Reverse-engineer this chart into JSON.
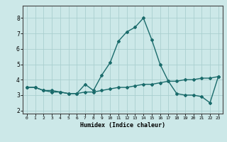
{
  "title": "",
  "xlabel": "Humidex (Indice chaleur)",
  "ylabel": "",
  "background_color": "#cce8e8",
  "grid_color": "#aacfcf",
  "line_color": "#1a6b6b",
  "xlim": [
    -0.5,
    23.5
  ],
  "ylim": [
    1.8,
    8.8
  ],
  "yticks": [
    2,
    3,
    4,
    5,
    6,
    7,
    8
  ],
  "xticks": [
    0,
    1,
    2,
    3,
    4,
    5,
    6,
    7,
    8,
    9,
    10,
    11,
    12,
    13,
    14,
    15,
    16,
    17,
    18,
    19,
    20,
    21,
    22,
    23
  ],
  "series1_x": [
    0,
    1,
    2,
    3,
    4,
    5,
    6,
    7,
    8,
    9,
    10,
    11,
    12,
    13,
    14,
    15,
    16,
    17,
    18,
    19,
    20,
    21,
    22,
    23
  ],
  "series1_y": [
    3.5,
    3.5,
    3.3,
    3.3,
    3.2,
    3.1,
    3.1,
    3.7,
    3.3,
    4.3,
    5.1,
    6.5,
    7.1,
    7.4,
    8.0,
    6.6,
    5.0,
    3.9,
    3.1,
    3.0,
    3.0,
    2.9,
    2.5,
    4.2
  ],
  "series2_x": [
    0,
    1,
    2,
    3,
    4,
    5,
    6,
    7,
    8,
    9,
    10,
    11,
    12,
    13,
    14,
    15,
    16,
    17,
    18,
    19,
    20,
    21,
    22,
    23
  ],
  "series2_y": [
    3.5,
    3.5,
    3.3,
    3.2,
    3.2,
    3.1,
    3.1,
    3.2,
    3.2,
    3.3,
    3.4,
    3.5,
    3.5,
    3.6,
    3.7,
    3.7,
    3.8,
    3.9,
    3.9,
    4.0,
    4.0,
    4.1,
    4.1,
    4.2
  ],
  "marker": "D",
  "marker_size": 2,
  "line_width": 1.0
}
